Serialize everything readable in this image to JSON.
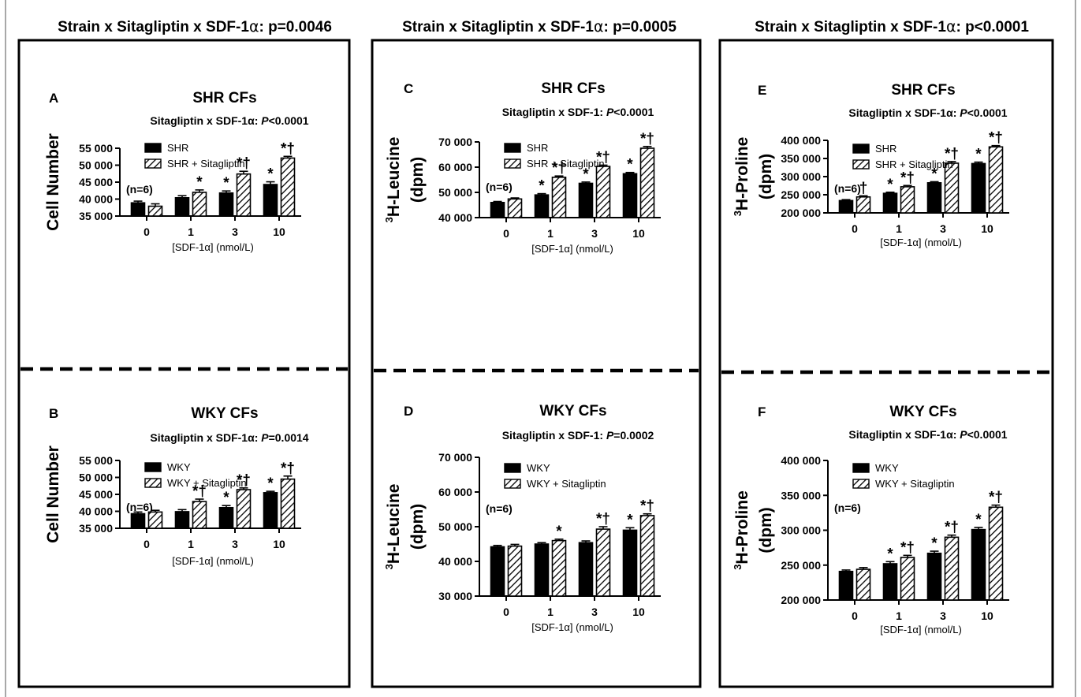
{
  "columns": [
    {
      "header": {
        "prefix": "Strain x Sitagliptin x SDF-1",
        "alpha": "α",
        "suffix": ": p=0.0046"
      },
      "charts": [
        {
          "letter": "A",
          "title": "SHR CFs",
          "subtitle": {
            "prefix": "Sitagliptin x SDF-1α: ",
            "p": "P",
            "suffix": "<0.0001"
          },
          "n_label": "(n=6)",
          "ylabel": {
            "lines": [
              "Cell Number"
            ],
            "sup": ""
          },
          "legend": [
            "SHR",
            "SHR + Sitagliptin"
          ],
          "xlabel": "[SDF-1α] (nmol/L)",
          "categories": [
            "0",
            "1",
            "3",
            "10"
          ],
          "ylim": [
            35000,
            55000
          ],
          "yticks": [
            35000,
            40000,
            45000,
            50000,
            55000
          ],
          "ytick_labels": [
            "35 000",
            "40 000",
            "45 000",
            "50 000",
            "55 000"
          ],
          "series": [
            {
              "name": "SHR",
              "values": [
                38900,
                40400,
                41800,
                44300
              ],
              "errors": [
                500,
                600,
                600,
                800
              ],
              "marks": [
                "",
                "",
                "*",
                "*"
              ]
            },
            {
              "name": "SHR + Sitagliptin",
              "values": [
                37900,
                42000,
                47400,
                52100
              ],
              "errors": [
                700,
                700,
                800,
                500
              ],
              "marks": [
                "",
                "*",
                "*†",
                "*†"
              ]
            }
          ]
        },
        {
          "letter": "B",
          "title": "WKY CFs",
          "subtitle": {
            "prefix": "Sitagliptin x SDF-1α: ",
            "p": "P",
            "suffix": "=0.0014"
          },
          "n_label": "(n=6)",
          "ylabel": {
            "lines": [
              "Cell Number"
            ],
            "sup": ""
          },
          "legend": [
            "WKY",
            "WKY + Sitagliptin"
          ],
          "xlabel": "[SDF-1α] (nmol/L)",
          "categories": [
            "0",
            "1",
            "3",
            "10"
          ],
          "ylim": [
            35000,
            55000
          ],
          "yticks": [
            35000,
            40000,
            45000,
            50000,
            55000
          ],
          "ytick_labels": [
            "35 000",
            "40 000",
            "45 000",
            "50 000",
            "55 000"
          ],
          "series": [
            {
              "name": "WKY",
              "values": [
                39300,
                39900,
                41100,
                45500
              ],
              "errors": [
                500,
                600,
                600,
                400
              ],
              "marks": [
                "",
                "",
                "*",
                "*"
              ]
            },
            {
              "name": "WKY + Sitagliptin",
              "values": [
                39800,
                42900,
                46400,
                49500
              ],
              "errors": [
                500,
                700,
                500,
                900
              ],
              "marks": [
                "",
                "*†",
                "*†",
                "*†"
              ]
            }
          ]
        }
      ]
    },
    {
      "header": {
        "prefix": "Strain x Sitagliptin x SDF-1",
        "alpha": "α",
        "suffix": ": p=0.0005"
      },
      "charts": [
        {
          "letter": "C",
          "title": "SHR CFs",
          "subtitle": {
            "prefix": "Sitagliptin x SDF-1: ",
            "p": "P",
            "suffix": "<0.0001"
          },
          "n_label": "(n=6)",
          "ylabel": {
            "lines": [
              "H-Leucine",
              "(dpm)"
            ],
            "sup": "3"
          },
          "legend": [
            "SHR",
            "SHR + Sitagliptin"
          ],
          "xlabel": "[SDF-1α] (nmol/L)",
          "categories": [
            "0",
            "1",
            "3",
            "10"
          ],
          "ylim": [
            40000,
            70000
          ],
          "yticks": [
            40000,
            50000,
            60000,
            70000
          ],
          "ytick_labels": [
            "40 000",
            "50 000",
            "60 000",
            "70 000"
          ],
          "series": [
            {
              "name": "SHR",
              "values": [
                46000,
                49000,
                53600,
                57400
              ],
              "errors": [
                400,
                500,
                500,
                500
              ],
              "marks": [
                "",
                "*",
                "*",
                "*"
              ]
            },
            {
              "name": "SHR + Sitagliptin",
              "values": [
                47400,
                56000,
                60300,
                67500
              ],
              "errors": [
                400,
                500,
                500,
                700
              ],
              "marks": [
                "",
                "*†",
                "*†",
                "*†"
              ]
            }
          ]
        },
        {
          "letter": "D",
          "title": "WKY CFs",
          "subtitle": {
            "prefix": "Sitagliptin x SDF-1: ",
            "p": "P",
            "suffix": "=0.0002"
          },
          "n_label": "(n=6)",
          "ylabel": {
            "lines": [
              "H-Leucine",
              "(dpm)"
            ],
            "sup": "3"
          },
          "legend": [
            "WKY",
            "WKY + Sitagliptin"
          ],
          "xlabel": "[SDF-1α] (nmol/L)",
          "categories": [
            "0",
            "1",
            "3",
            "10"
          ],
          "ylim": [
            30000,
            70000
          ],
          "yticks": [
            30000,
            40000,
            50000,
            60000,
            70000
          ],
          "ytick_labels": [
            "30 000",
            "40 000",
            "50 000",
            "60 000",
            "70 000"
          ],
          "series": [
            {
              "name": "WKY",
              "values": [
                44200,
                45000,
                45400,
                49000
              ],
              "errors": [
                400,
                400,
                500,
                700
              ],
              "marks": [
                "",
                "",
                "",
                "*"
              ]
            },
            {
              "name": "WKY + Sitagliptin",
              "values": [
                44400,
                46000,
                49300,
                53200
              ],
              "errors": [
                500,
                400,
                700,
                500
              ],
              "marks": [
                "",
                "*",
                "*†",
                "*†"
              ]
            }
          ]
        }
      ]
    },
    {
      "header": {
        "prefix": "Strain x Sitagliptin x SDF-1",
        "alpha": "α",
        "suffix": ": p<0.0001"
      },
      "charts": [
        {
          "letter": "E",
          "title": "SHR CFs",
          "subtitle": {
            "prefix": "Sitagliptin x SDF-1α: ",
            "p": "P",
            "suffix": "<0.0001"
          },
          "n_label": "(n=6)",
          "ylabel": {
            "lines": [
              "H-Proline",
              "(dpm)"
            ],
            "sup": "3"
          },
          "legend": [
            "SHR",
            "SHR + Sitagliptin"
          ],
          "xlabel": "[SDF-1α] (nmol/L)",
          "categories": [
            "0",
            "1",
            "3",
            "10"
          ],
          "ylim": [
            200000,
            400000
          ],
          "yticks": [
            200000,
            250000,
            300000,
            350000,
            400000
          ],
          "ytick_labels": [
            "200 000",
            "250 000",
            "300 000",
            "350 000",
            "400 000"
          ],
          "series": [
            {
              "name": "SHR",
              "values": [
                234000,
                254000,
                283000,
                336000
              ],
              "errors": [
                2500,
                3000,
                3000,
                4000
              ],
              "marks": [
                "",
                "*",
                "*",
                "*"
              ]
            },
            {
              "name": "SHR + Sitagliptin",
              "values": [
                244000,
                272000,
                337000,
                382000
              ],
              "errors": [
                3000,
                3500,
                4500,
                3500
              ],
              "marks": [
                "†",
                "*†",
                "*†",
                "*†"
              ]
            }
          ]
        },
        {
          "letter": "F",
          "title": "WKY CFs",
          "subtitle": {
            "prefix": "Sitagliptin x SDF-1α: ",
            "p": "P",
            "suffix": "<0.0001"
          },
          "n_label": "(n=6)",
          "ylabel": {
            "lines": [
              "H-Proline",
              "(dpm)"
            ],
            "sup": "3"
          },
          "legend": [
            "WKY",
            "WKY + Sitagliptin"
          ],
          "xlabel": "[SDF-1α] (nmol/L)",
          "categories": [
            "0",
            "1",
            "3",
            "10"
          ],
          "ylim": [
            200000,
            400000
          ],
          "yticks": [
            200000,
            250000,
            300000,
            350000,
            400000
          ],
          "ytick_labels": [
            "200 000",
            "250 000",
            "300 000",
            "350 000",
            "400 000"
          ],
          "series": [
            {
              "name": "WKY",
              "values": [
                241000,
                252000,
                267000,
                301000
              ],
              "errors": [
                2000,
                3000,
                3000,
                3000
              ],
              "marks": [
                "",
                "*",
                "*",
                "*"
              ]
            },
            {
              "name": "WKY + Sitagliptin",
              "values": [
                244000,
                261000,
                290000,
                333000
              ],
              "errors": [
                2500,
                3000,
                3000,
                3000
              ],
              "marks": [
                "",
                "*†",
                "*†",
                "*†"
              ]
            }
          ]
        }
      ]
    }
  ],
  "colors": {
    "bar_fill": "#000000",
    "hatch": "#000000",
    "axis": "#000000",
    "frame": "#a8a8a8"
  }
}
